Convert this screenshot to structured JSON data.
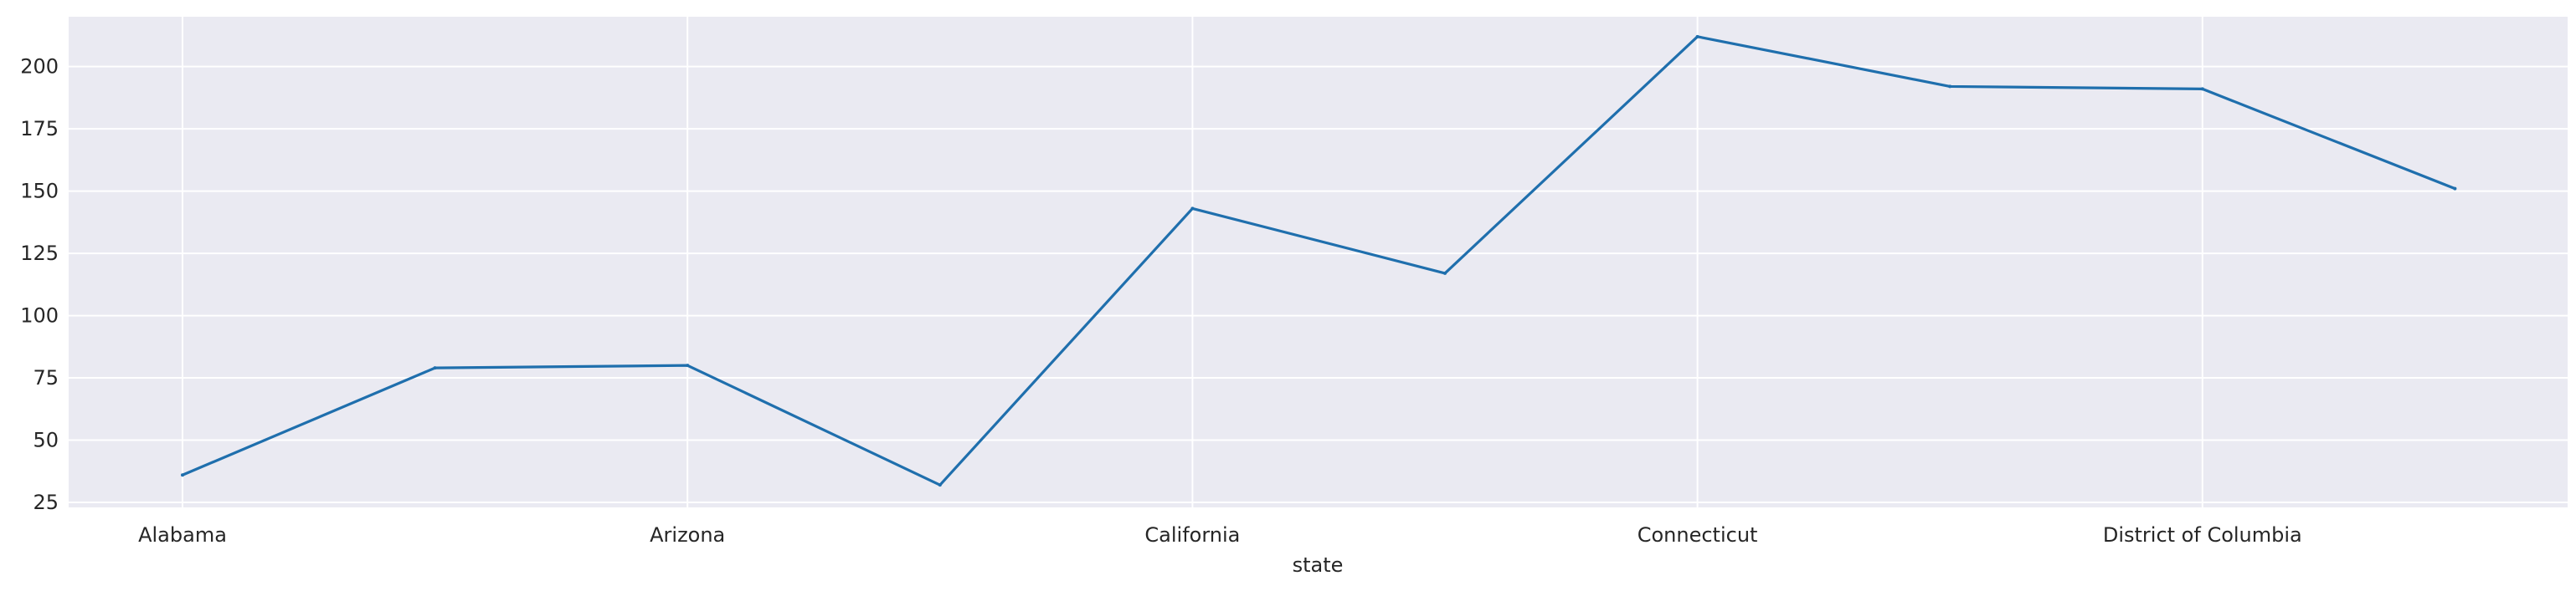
{
  "chart_data": {
    "type": "line",
    "title": "",
    "xlabel": "state",
    "ylabel": "",
    "categories": [
      "Alabama",
      "",
      "Arizona",
      "",
      "California",
      "",
      "Connecticut",
      "",
      "District of Columbia",
      ""
    ],
    "x_tick_labels": [
      "Alabama",
      "Arizona",
      "California",
      "Connecticut",
      "District of Columbia"
    ],
    "y_ticks": [
      25,
      50,
      75,
      100,
      125,
      150,
      175,
      200
    ],
    "ylim": [
      23,
      220
    ],
    "grid": true,
    "series": [
      {
        "values": [
          36,
          79,
          80,
          32,
          143,
          117,
          212,
          192,
          191,
          151
        ]
      }
    ],
    "colors": {
      "line": "#1f6fad",
      "plot_background": "#eaeaf2",
      "grid": "#ffffff"
    }
  }
}
